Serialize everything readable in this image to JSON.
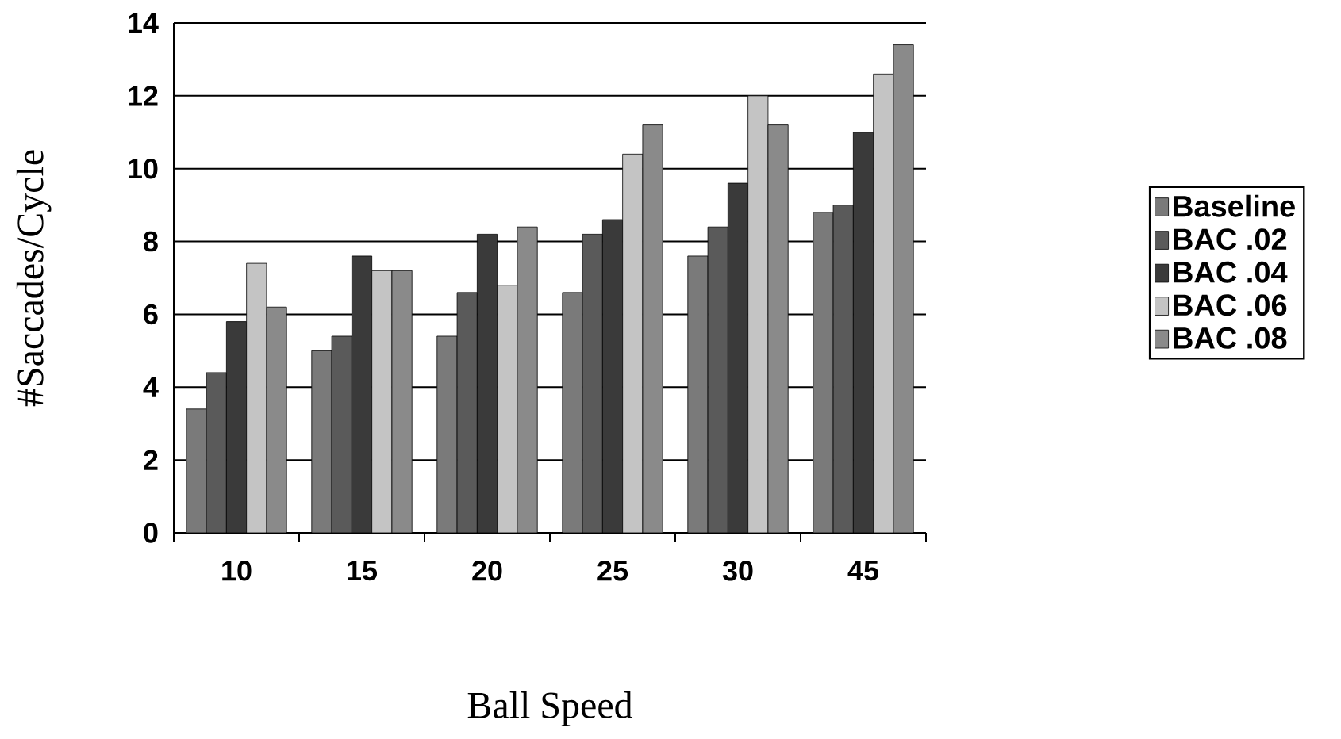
{
  "chart_data": {
    "type": "bar",
    "xlabel": "Ball Speed",
    "ylabel": "#Saccades/Cycle",
    "categories": [
      "10",
      "15",
      "20",
      "25",
      "30",
      "45"
    ],
    "series": [
      {
        "name": "Baseline",
        "color": "#7a7a7a",
        "values": [
          3.4,
          5.0,
          5.4,
          6.6,
          7.6,
          8.8
        ]
      },
      {
        "name": "BAC .02",
        "color": "#5a5a5a",
        "values": [
          4.4,
          5.4,
          6.6,
          8.2,
          8.4,
          9.0
        ]
      },
      {
        "name": "BAC .04",
        "color": "#3a3a3a",
        "values": [
          5.8,
          7.6,
          8.2,
          8.6,
          9.6,
          11.0
        ]
      },
      {
        "name": "BAC .06",
        "color": "#c4c4c4",
        "values": [
          7.4,
          7.2,
          6.8,
          10.4,
          12.0,
          12.6
        ]
      },
      {
        "name": "BAC .08",
        "color": "#8a8a8a",
        "values": [
          6.2,
          7.2,
          8.4,
          11.2,
          11.2,
          13.4
        ]
      }
    ],
    "ylim": [
      0,
      14
    ],
    "yticks": [
      0,
      2,
      4,
      6,
      8,
      10,
      12,
      14
    ],
    "grid": "y",
    "legend": "right"
  }
}
